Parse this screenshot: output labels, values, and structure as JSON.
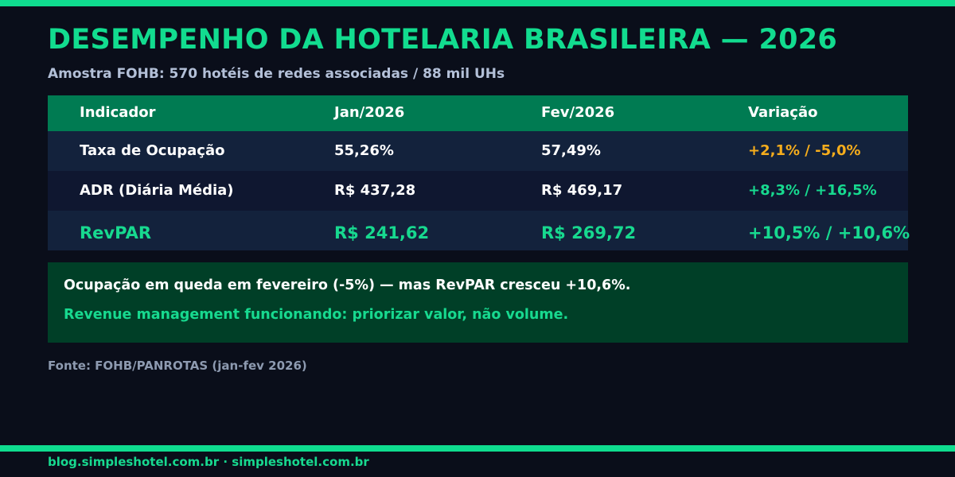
{
  "header": {
    "title": "DESEMPENHO DA HOTELARIA BRASILEIRA — 2026",
    "subtitle": "Amostra FOHB: 570 hotéis de redes associadas / 88 mil UHs"
  },
  "table": {
    "columns": [
      "Indicador",
      "Jan/2026",
      "Fev/2026",
      "Variação"
    ],
    "rows": [
      [
        "Taxa de Ocupação",
        "55,26%",
        "57,49%",
        "+2,1% / -5,0%"
      ],
      [
        "ADR (Diária Média)",
        "R$ 437,28",
        "R$ 469,17",
        "+8,3% / +16,5%"
      ],
      [
        "RevPAR",
        "R$ 241,62",
        "R$ 269,72",
        "+10,5% / +10,6%"
      ]
    ]
  },
  "note": {
    "line1": "Ocupação em queda em fevereiro (-5%) — mas RevPAR cresceu +10,6%.",
    "line2": "Revenue management funcionando: priorizar valor, não volume."
  },
  "source": "Fonte: FOHB/PANROTAS (jan-fev 2026)",
  "footer": "blog.simpleshotel.com.br · simpleshotel.com.br"
}
